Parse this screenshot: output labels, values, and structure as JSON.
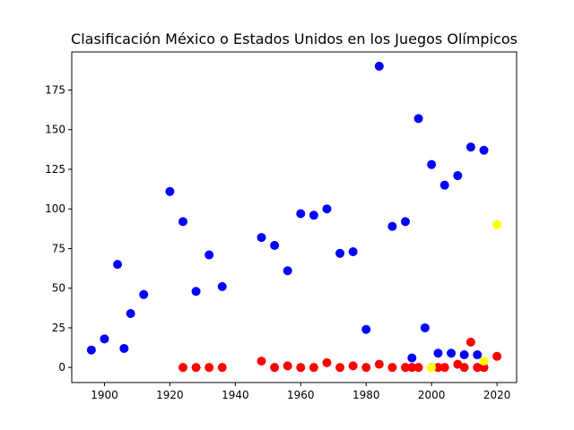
{
  "chart_data": {
    "type": "scatter",
    "title": "Clasificación México o Estados Unidos en los Juegos Olímpicos",
    "xlabel": "",
    "ylabel": "",
    "xlim": [
      1890,
      2026
    ],
    "ylim": [
      -9.5,
      199
    ],
    "xticks": [
      1900,
      1920,
      1940,
      1960,
      1980,
      2000,
      2020
    ],
    "yticks": [
      0,
      25,
      50,
      75,
      100,
      125,
      150,
      175
    ],
    "grid": false,
    "series": [
      {
        "color": "#0000ff",
        "points": [
          [
            1896,
            11
          ],
          [
            1900,
            18
          ],
          [
            1904,
            65
          ],
          [
            1906,
            12
          ],
          [
            1908,
            34
          ],
          [
            1912,
            46
          ],
          [
            1920,
            111
          ],
          [
            1924,
            92
          ],
          [
            1928,
            48
          ],
          [
            1932,
            71
          ],
          [
            1936,
            51
          ],
          [
            1948,
            82
          ],
          [
            1952,
            77
          ],
          [
            1956,
            61
          ],
          [
            1960,
            97
          ],
          [
            1964,
            96
          ],
          [
            1968,
            100
          ],
          [
            1972,
            72
          ],
          [
            1976,
            73
          ],
          [
            1980,
            24
          ],
          [
            1984,
            190
          ],
          [
            1988,
            89
          ],
          [
            1992,
            92
          ],
          [
            1994,
            6
          ],
          [
            1996,
            157
          ],
          [
            1998,
            25
          ],
          [
            2000,
            128
          ],
          [
            2002,
            9
          ],
          [
            2004,
            115
          ],
          [
            2006,
            9
          ],
          [
            2008,
            121
          ],
          [
            2010,
            8
          ],
          [
            2012,
            139
          ],
          [
            2014,
            8
          ],
          [
            2016,
            137
          ]
        ]
      },
      {
        "color": "#ff0000",
        "points": [
          [
            1924,
            0
          ],
          [
            1928,
            0
          ],
          [
            1932,
            0
          ],
          [
            1936,
            0
          ],
          [
            1948,
            4
          ],
          [
            1952,
            0
          ],
          [
            1956,
            1
          ],
          [
            1960,
            0
          ],
          [
            1964,
            0
          ],
          [
            1968,
            3
          ],
          [
            1972,
            0
          ],
          [
            1976,
            1
          ],
          [
            1980,
            0
          ],
          [
            1984,
            2
          ],
          [
            1988,
            0
          ],
          [
            1992,
            0
          ],
          [
            1994,
            0
          ],
          [
            1996,
            0
          ],
          [
            2000,
            0
          ],
          [
            2002,
            0
          ],
          [
            2004,
            0
          ],
          [
            2008,
            2
          ],
          [
            2010,
            0
          ],
          [
            2012,
            16
          ],
          [
            2014,
            0
          ],
          [
            2016,
            0
          ],
          [
            2020,
            7
          ]
        ]
      },
      {
        "color": "#ffff00",
        "points": [
          [
            2000,
            0
          ],
          [
            2016,
            4
          ],
          [
            2020,
            90
          ]
        ]
      }
    ]
  }
}
